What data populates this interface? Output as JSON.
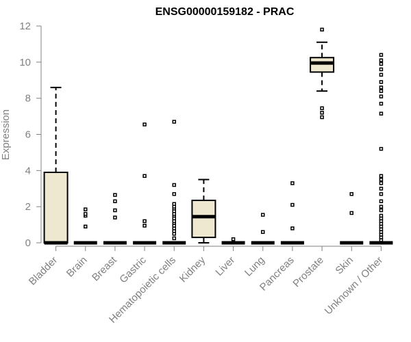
{
  "chart_data": {
    "type": "boxplot",
    "title": "ENSG00000159182 - PRAC",
    "xlabel": "",
    "ylabel": "Expression",
    "ylim": [
      0,
      12
    ],
    "yticks": [
      0,
      2,
      4,
      6,
      8,
      10,
      12
    ],
    "box_fill": "#ede8cf",
    "line_color": "#000000",
    "axis_color": "#808080",
    "categories": [
      "Bladder",
      "Brain",
      "Breast",
      "Gastric",
      "Hematopoietic cells",
      "Kidney",
      "Liver",
      "Lung",
      "Pancreas",
      "Prostate",
      "Skin",
      "Unknown / Other"
    ],
    "boxes": [
      {
        "category": "Bladder",
        "lower_whisker": 0,
        "q1": 0,
        "median": 0,
        "q3": 3.9,
        "upper_whisker": 8.6,
        "outliers": []
      },
      {
        "category": "Brain",
        "lower_whisker": 0,
        "q1": 0,
        "median": 0,
        "q3": 0,
        "upper_whisker": 0,
        "outliers": [
          0.9,
          1.5,
          1.6,
          1.85
        ]
      },
      {
        "category": "Breast",
        "lower_whisker": 0,
        "q1": 0,
        "median": 0,
        "q3": 0,
        "upper_whisker": 0,
        "outliers": [
          1.4,
          1.8,
          2.3,
          2.65
        ]
      },
      {
        "category": "Gastric",
        "lower_whisker": 0,
        "q1": 0,
        "median": 0,
        "q3": 0,
        "upper_whisker": 0,
        "outliers": [
          0.95,
          1.2,
          3.7,
          6.55
        ]
      },
      {
        "category": "Hematopoietic cells",
        "lower_whisker": 0,
        "q1": 0,
        "median": 0,
        "q3": 0,
        "upper_whisker": 0,
        "outliers": [
          0.25,
          0.5,
          0.65,
          0.8,
          0.95,
          1.1,
          1.2,
          1.35,
          1.5,
          1.6,
          1.75,
          1.9,
          2.0,
          2.15,
          2.7,
          3.2,
          6.7
        ]
      },
      {
        "category": "Kidney",
        "lower_whisker": 0,
        "q1": 0.3,
        "median": 1.45,
        "q3": 2.35,
        "upper_whisker": 3.5,
        "outliers": []
      },
      {
        "category": "Liver",
        "lower_whisker": 0,
        "q1": 0,
        "median": 0,
        "q3": 0,
        "upper_whisker": 0,
        "outliers": [
          0.2
        ]
      },
      {
        "category": "Lung",
        "lower_whisker": 0,
        "q1": 0,
        "median": 0,
        "q3": 0,
        "upper_whisker": 0,
        "outliers": [
          0.6,
          1.55
        ]
      },
      {
        "category": "Pancreas",
        "lower_whisker": 0,
        "q1": 0,
        "median": 0,
        "q3": 0,
        "upper_whisker": 0,
        "outliers": [
          0.8,
          2.1,
          3.3
        ]
      },
      {
        "category": "Prostate",
        "lower_whisker": 8.4,
        "q1": 9.45,
        "median": 9.95,
        "q3": 10.25,
        "upper_whisker": 11.1,
        "outliers": [
          6.95,
          7.2,
          7.45,
          11.8
        ]
      },
      {
        "category": "Skin",
        "lower_whisker": 0,
        "q1": 0,
        "median": 0,
        "q3": 0,
        "upper_whisker": 0,
        "outliers": [
          1.65,
          2.7
        ]
      },
      {
        "category": "Unknown / Other",
        "lower_whisker": 0,
        "q1": 0,
        "median": 0,
        "q3": 0,
        "upper_whisker": 0,
        "outliers": [
          0.15,
          0.3,
          0.45,
          0.6,
          0.75,
          0.9,
          1.05,
          1.2,
          1.35,
          1.5,
          1.8,
          2.0,
          2.3,
          2.7,
          3.0,
          3.3,
          3.5,
          3.7,
          5.2,
          7.15,
          7.7,
          8.1,
          8.4,
          8.6,
          8.9,
          9.3,
          9.6,
          9.9,
          10.1,
          10.4
        ]
      }
    ]
  }
}
